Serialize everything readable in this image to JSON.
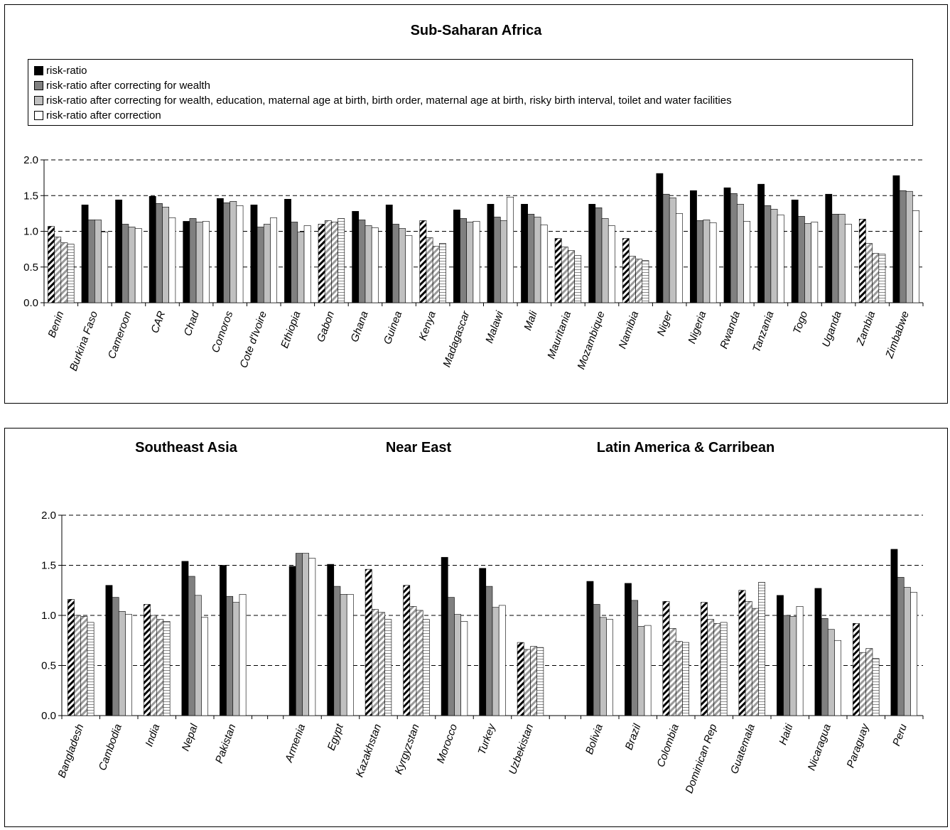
{
  "colors": {
    "risk_ratio": "#000000",
    "wealth": "#808080",
    "multi": "#c0c0c0",
    "corrected": "#ffffff"
  },
  "chart_data": [
    {
      "type": "bar",
      "title": "Sub-Saharan Africa",
      "ylim": [
        0,
        2
      ],
      "yticks": [
        "0.0",
        "0.5",
        "1.0",
        "1.5",
        "2.0"
      ],
      "grid": true,
      "legend_position": "top",
      "series": [
        {
          "name": "risk-ratio"
        },
        {
          "name": "risk-ratio after correcting for wealth"
        },
        {
          "name": "risk-ratio after correcting for wealth, education, maternal age at birth, birth order, maternal age at birth, risky birth interval, toilet and water facilities"
        },
        {
          "name": "risk-ratio after correction"
        }
      ],
      "countries": [
        {
          "name": "Benin",
          "values": [
            1.07,
            0.92,
            0.84,
            0.82
          ],
          "pattern": true
        },
        {
          "name": "Burkina Faso",
          "values": [
            1.37,
            1.16,
            1.16,
            0.99
          ],
          "pattern": false
        },
        {
          "name": "Cameroon",
          "values": [
            1.44,
            1.1,
            1.06,
            1.04
          ],
          "pattern": false
        },
        {
          "name": "CAR",
          "values": [
            1.49,
            1.39,
            1.34,
            1.19
          ],
          "pattern": false
        },
        {
          "name": "Chad",
          "values": [
            1.14,
            1.18,
            1.13,
            1.14
          ],
          "pattern": false
        },
        {
          "name": "Comoros",
          "values": [
            1.46,
            1.4,
            1.42,
            1.36
          ],
          "pattern": false
        },
        {
          "name": "Cote d'Ivoire",
          "values": [
            1.37,
            1.06,
            1.1,
            1.19
          ],
          "pattern": false
        },
        {
          "name": "Ethiopia",
          "values": [
            1.45,
            1.13,
            0.99,
            1.08
          ],
          "pattern": false
        },
        {
          "name": "Gabon",
          "values": [
            1.1,
            1.15,
            1.13,
            1.18
          ],
          "pattern": true
        },
        {
          "name": "Ghana",
          "values": [
            1.28,
            1.16,
            1.08,
            1.05
          ],
          "pattern": false
        },
        {
          "name": "Guinea",
          "values": [
            1.37,
            1.1,
            1.04,
            0.94
          ],
          "pattern": false
        },
        {
          "name": "Kenya",
          "values": [
            1.15,
            0.91,
            0.79,
            0.83
          ],
          "pattern": true
        },
        {
          "name": "Madagascar",
          "values": [
            1.3,
            1.18,
            1.13,
            1.14
          ],
          "pattern": false
        },
        {
          "name": "Malawi",
          "values": [
            1.38,
            1.2,
            1.15,
            1.48
          ],
          "pattern": false
        },
        {
          "name": "Mali",
          "values": [
            1.38,
            1.24,
            1.2,
            1.09
          ],
          "pattern": false
        },
        {
          "name": "Mauritania",
          "values": [
            0.9,
            0.78,
            0.73,
            0.66
          ],
          "pattern": true
        },
        {
          "name": "Mozambique",
          "values": [
            1.38,
            1.33,
            1.18,
            1.08
          ],
          "pattern": false
        },
        {
          "name": "Namibia",
          "values": [
            0.9,
            0.65,
            0.61,
            0.59
          ],
          "pattern": true
        },
        {
          "name": "Niger",
          "values": [
            1.81,
            1.52,
            1.47,
            1.25
          ],
          "pattern": false
        },
        {
          "name": "Nigeria",
          "values": [
            1.57,
            1.15,
            1.16,
            1.12
          ],
          "pattern": false
        },
        {
          "name": "Rwanda",
          "values": [
            1.61,
            1.53,
            1.38,
            1.14
          ],
          "pattern": false
        },
        {
          "name": "Tanzania",
          "values": [
            1.66,
            1.36,
            1.31,
            1.23
          ],
          "pattern": false
        },
        {
          "name": "Togo",
          "values": [
            1.44,
            1.21,
            1.11,
            1.13
          ],
          "pattern": false
        },
        {
          "name": "Uganda",
          "values": [
            1.52,
            1.24,
            1.24,
            1.1
          ],
          "pattern": false
        },
        {
          "name": "Zambia",
          "values": [
            1.17,
            0.83,
            0.69,
            0.68
          ],
          "pattern": true
        },
        {
          "name": "Zimbabwe",
          "values": [
            1.78,
            1.57,
            1.56,
            1.29
          ],
          "pattern": false
        }
      ]
    },
    {
      "type": "bar",
      "titles": [
        "Southeast Asia",
        "Near East",
        "Latin America & Carribean"
      ],
      "ylim": [
        0,
        2
      ],
      "yticks": [
        "0.0",
        "0.5",
        "1.0",
        "1.5",
        "2.0"
      ],
      "grid": true,
      "groups": [
        {
          "title": "Southeast Asia",
          "countries": [
            {
              "name": "Bangladesh",
              "values": [
                1.16,
                1.0,
                0.99,
                0.93
              ],
              "pattern": true
            },
            {
              "name": "Cambodia",
              "values": [
                1.3,
                1.18,
                1.04,
                1.01
              ],
              "pattern": false
            },
            {
              "name": "India",
              "values": [
                1.11,
                1.0,
                0.96,
                0.94
              ],
              "pattern": true
            },
            {
              "name": "Nepal",
              "values": [
                1.54,
                1.39,
                1.2,
                0.98
              ],
              "pattern": false
            },
            {
              "name": "Pakistan",
              "values": [
                1.5,
                1.19,
                1.13,
                1.21
              ],
              "pattern": false
            }
          ]
        },
        {
          "title": "Near East",
          "countries": [
            {
              "name": "Armenia",
              "values": [
                1.49,
                1.62,
                1.62,
                1.57
              ],
              "pattern": false
            },
            {
              "name": "Egypt",
              "values": [
                1.51,
                1.29,
                1.21,
                1.21
              ],
              "pattern": false
            },
            {
              "name": "Kazakhstan",
              "values": [
                1.46,
                1.06,
                1.03,
                0.96
              ],
              "pattern": true
            },
            {
              "name": "Kyrgyzstan",
              "values": [
                1.3,
                1.09,
                1.05,
                0.96
              ],
              "pattern": true
            },
            {
              "name": "Morocco",
              "values": [
                1.58,
                1.18,
                1.01,
                0.94
              ],
              "pattern": false
            },
            {
              "name": "Turkey",
              "values": [
                1.47,
                1.29,
                1.08,
                1.1
              ],
              "pattern": false
            },
            {
              "name": "Uzbekistan",
              "values": [
                0.73,
                0.66,
                0.69,
                0.68
              ],
              "pattern": true
            }
          ]
        },
        {
          "title": "Latin America & Carribean",
          "countries": [
            {
              "name": "Bolivia",
              "values": [
                1.34,
                1.11,
                0.98,
                0.96
              ],
              "pattern": false
            },
            {
              "name": "Brazil",
              "values": [
                1.32,
                1.15,
                0.89,
                0.9
              ],
              "pattern": false
            },
            {
              "name": "Colombia",
              "values": [
                1.14,
                0.87,
                0.74,
                0.73
              ],
              "pattern": true
            },
            {
              "name": "Dominican Rep",
              "values": [
                1.13,
                0.96,
                0.92,
                0.93
              ],
              "pattern": true
            },
            {
              "name": "Guatemala",
              "values": [
                1.25,
                1.14,
                1.07,
                1.33
              ],
              "pattern": true
            },
            {
              "name": "Haiti",
              "values": [
                1.2,
                1.0,
                0.99,
                1.09
              ],
              "pattern": false
            },
            {
              "name": "Nicaragua",
              "values": [
                1.27,
                0.97,
                0.86,
                0.75
              ],
              "pattern": false
            },
            {
              "name": "Paraguay",
              "values": [
                0.92,
                0.63,
                0.67,
                0.57
              ],
              "pattern": true
            },
            {
              "name": "Peru",
              "values": [
                1.66,
                1.38,
                1.28,
                1.23
              ],
              "pattern": false
            }
          ]
        }
      ]
    }
  ]
}
